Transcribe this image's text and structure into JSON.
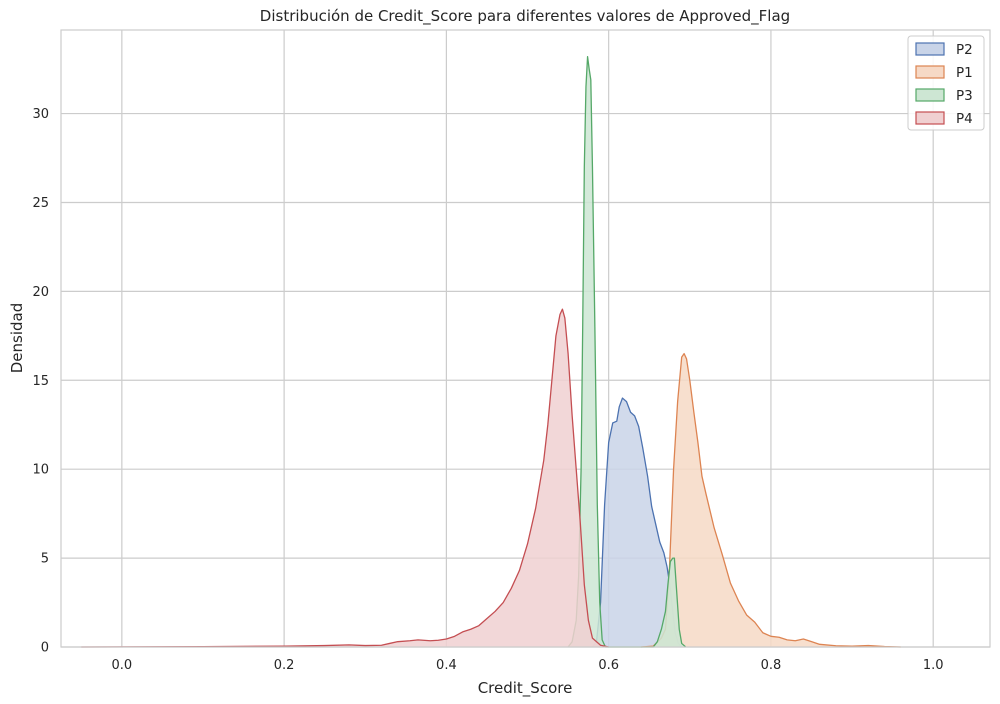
{
  "chart_data": {
    "type": "area",
    "title": "Distribución de Credit_Score para diferentes valores de Approved_Flag",
    "xlabel": "Credit_Score",
    "ylabel": "Densidad",
    "xlim": [
      -0.075,
      1.07
    ],
    "ylim": [
      0,
      34.7
    ],
    "x_ticks": [
      0.0,
      0.2,
      0.4,
      0.6,
      0.8,
      1.0
    ],
    "x_tick_labels": [
      "0.0",
      "0.2",
      "0.4",
      "0.6",
      "0.8",
      "1.0"
    ],
    "y_ticks": [
      0,
      5,
      10,
      15,
      20,
      25,
      30
    ],
    "y_tick_labels": [
      "0",
      "5",
      "10",
      "15",
      "20",
      "25",
      "30"
    ],
    "grid": true,
    "legend_position": "top-right",
    "series": [
      {
        "name": "P2",
        "color": "#4c72b0",
        "fill": "#c9d4e8",
        "points": [
          [
            0.58,
            0
          ],
          [
            0.585,
            0.3
          ],
          [
            0.59,
            2.5
          ],
          [
            0.595,
            8.0
          ],
          [
            0.6,
            11.5
          ],
          [
            0.605,
            12.6
          ],
          [
            0.61,
            12.7
          ],
          [
            0.613,
            13.5
          ],
          [
            0.617,
            14.0
          ],
          [
            0.622,
            13.8
          ],
          [
            0.627,
            13.2
          ],
          [
            0.632,
            13.0
          ],
          [
            0.637,
            12.4
          ],
          [
            0.642,
            11.2
          ],
          [
            0.648,
            9.6
          ],
          [
            0.653,
            7.9
          ],
          [
            0.658,
            6.9
          ],
          [
            0.663,
            5.9
          ],
          [
            0.668,
            5.3
          ],
          [
            0.672,
            4.5
          ],
          [
            0.676,
            3.3
          ],
          [
            0.679,
            2.0
          ],
          [
            0.682,
            0.8
          ],
          [
            0.686,
            0.2
          ],
          [
            0.69,
            0
          ]
        ]
      },
      {
        "name": "P1",
        "color": "#dd8452",
        "fill": "#f6d9c6",
        "points": [
          [
            0.64,
            0
          ],
          [
            0.655,
            0.05
          ],
          [
            0.665,
            0.5
          ],
          [
            0.67,
            1.0
          ],
          [
            0.675,
            4.5
          ],
          [
            0.68,
            10.0
          ],
          [
            0.685,
            13.8
          ],
          [
            0.69,
            16.3
          ],
          [
            0.693,
            16.5
          ],
          [
            0.696,
            16.2
          ],
          [
            0.7,
            15.0
          ],
          [
            0.705,
            13.2
          ],
          [
            0.71,
            11.5
          ],
          [
            0.715,
            9.6
          ],
          [
            0.72,
            8.6
          ],
          [
            0.73,
            6.7
          ],
          [
            0.74,
            5.2
          ],
          [
            0.75,
            3.6
          ],
          [
            0.76,
            2.6
          ],
          [
            0.77,
            1.8
          ],
          [
            0.78,
            1.4
          ],
          [
            0.79,
            0.8
          ],
          [
            0.8,
            0.6
          ],
          [
            0.81,
            0.55
          ],
          [
            0.82,
            0.4
          ],
          [
            0.83,
            0.35
          ],
          [
            0.84,
            0.45
          ],
          [
            0.85,
            0.3
          ],
          [
            0.86,
            0.15
          ],
          [
            0.88,
            0.07
          ],
          [
            0.9,
            0.05
          ],
          [
            0.92,
            0.08
          ],
          [
            0.94,
            0.03
          ],
          [
            0.96,
            0
          ]
        ]
      },
      {
        "name": "P3",
        "color": "#55a868",
        "fill": "#cde6d3",
        "points": [
          [
            0.55,
            0
          ],
          [
            0.555,
            0.3
          ],
          [
            0.56,
            1.5
          ],
          [
            0.563,
            4.0
          ],
          [
            0.566,
            10.0
          ],
          [
            0.568,
            18.0
          ],
          [
            0.57,
            27.0
          ],
          [
            0.572,
            31.5
          ],
          [
            0.574,
            33.2
          ],
          [
            0.576,
            32.5
          ],
          [
            0.578,
            31.9
          ],
          [
            0.58,
            27.0
          ],
          [
            0.583,
            18.0
          ],
          [
            0.586,
            8.0
          ],
          [
            0.589,
            2.5
          ],
          [
            0.592,
            0.4
          ],
          [
            0.596,
            0
          ],
          [
            0.655,
            0
          ],
          [
            0.66,
            0.3
          ],
          [
            0.665,
            1.0
          ],
          [
            0.67,
            2.0
          ],
          [
            0.673,
            3.5
          ],
          [
            0.676,
            4.8
          ],
          [
            0.679,
            5.0
          ],
          [
            0.681,
            5.0
          ],
          [
            0.684,
            3.0
          ],
          [
            0.687,
            1.0
          ],
          [
            0.69,
            0.2
          ],
          [
            0.695,
            0
          ]
        ]
      },
      {
        "name": "P4",
        "color": "#c44e52",
        "fill": "#f0d0d1",
        "points": [
          [
            -0.05,
            0
          ],
          [
            0.1,
            0.02
          ],
          [
            0.2,
            0.05
          ],
          [
            0.25,
            0.08
          ],
          [
            0.28,
            0.12
          ],
          [
            0.3,
            0.08
          ],
          [
            0.32,
            0.1
          ],
          [
            0.33,
            0.2
          ],
          [
            0.34,
            0.3
          ],
          [
            0.355,
            0.35
          ],
          [
            0.365,
            0.4
          ],
          [
            0.38,
            0.35
          ],
          [
            0.39,
            0.38
          ],
          [
            0.4,
            0.45
          ],
          [
            0.41,
            0.6
          ],
          [
            0.42,
            0.85
          ],
          [
            0.43,
            1.0
          ],
          [
            0.44,
            1.2
          ],
          [
            0.45,
            1.6
          ],
          [
            0.46,
            2.0
          ],
          [
            0.47,
            2.5
          ],
          [
            0.48,
            3.3
          ],
          [
            0.49,
            4.3
          ],
          [
            0.5,
            5.8
          ],
          [
            0.51,
            7.8
          ],
          [
            0.52,
            10.5
          ],
          [
            0.525,
            12.5
          ],
          [
            0.53,
            15.0
          ],
          [
            0.535,
            17.5
          ],
          [
            0.54,
            18.7
          ],
          [
            0.543,
            19.0
          ],
          [
            0.546,
            18.5
          ],
          [
            0.55,
            16.5
          ],
          [
            0.555,
            13.0
          ],
          [
            0.56,
            10.0
          ],
          [
            0.565,
            7.0
          ],
          [
            0.57,
            3.5
          ],
          [
            0.575,
            1.5
          ],
          [
            0.58,
            0.5
          ],
          [
            0.59,
            0.1
          ],
          [
            0.6,
            0
          ]
        ]
      }
    ]
  }
}
